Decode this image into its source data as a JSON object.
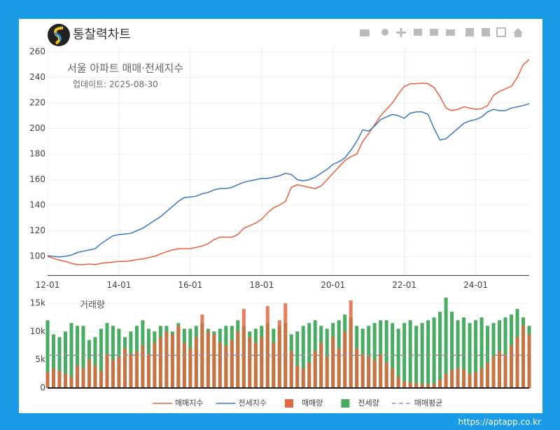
{
  "brand": "통찰력차트",
  "watermark": "https://aptapp.co.kr",
  "chart_data": [
    {
      "type": "line",
      "title": "서울 아파트 매매·전세지수",
      "subtitle": "업데이트: 2025-08-30",
      "categories": [
        "12-01",
        "12-03",
        "12-05",
        "12-07",
        "12-09",
        "12-11",
        "13-01",
        "13-03",
        "13-05",
        "13-07",
        "13-09",
        "13-11",
        "14-01",
        "14-03",
        "14-05",
        "14-07",
        "14-09",
        "14-11",
        "15-01",
        "15-03",
        "15-05",
        "15-07",
        "15-09",
        "15-11",
        "16-01",
        "16-03",
        "16-05",
        "16-07",
        "16-09",
        "16-11",
        "17-01",
        "17-03",
        "17-05",
        "17-07",
        "17-09",
        "17-11",
        "18-01",
        "18-03",
        "18-05",
        "18-07",
        "18-09",
        "18-11",
        "19-01",
        "19-03",
        "19-05",
        "19-07",
        "19-09",
        "19-11",
        "20-01",
        "20-03",
        "20-05",
        "20-07",
        "20-09",
        "20-11",
        "21-01",
        "21-03",
        "21-05",
        "21-07",
        "21-09",
        "21-11",
        "22-01",
        "22-03",
        "22-05",
        "22-07",
        "22-09",
        "22-11",
        "23-01",
        "23-03",
        "23-05",
        "23-07",
        "23-09",
        "23-11",
        "24-01",
        "24-03",
        "24-05",
        "24-07",
        "24-09",
        "24-11",
        "25-01",
        "25-03",
        "25-05",
        "25-07"
      ],
      "series": [
        {
          "name": "매매지수",
          "color": "#e8603c",
          "values": [
            100,
            98.5,
            97,
            96,
            94.5,
            93.5,
            93.5,
            94,
            93.5,
            94.5,
            95,
            95.5,
            96,
            96,
            96.5,
            97.5,
            98,
            99,
            100,
            102,
            103.5,
            105,
            106,
            106,
            106,
            107,
            108,
            110,
            113,
            115,
            115,
            115,
            117,
            122,
            124,
            126,
            129,
            134,
            138,
            140,
            143,
            154,
            156,
            155,
            154,
            153,
            155,
            160,
            165,
            170,
            175,
            178,
            180,
            190,
            196,
            203,
            210,
            215,
            220,
            227,
            233,
            235,
            235,
            235.5,
            235,
            232,
            225,
            216,
            214,
            215,
            217,
            216,
            215,
            215.5,
            218,
            226,
            229,
            231,
            233,
            240,
            250,
            254
          ]
        },
        {
          "name": "전세지수",
          "color": "#3a78c4",
          "values": [
            100.5,
            100,
            99.5,
            100,
            101,
            103,
            104,
            105,
            106,
            110,
            113,
            116,
            117,
            117.5,
            118,
            120,
            122,
            125,
            128,
            131,
            135,
            139,
            143,
            146,
            146.5,
            147,
            149,
            150,
            152,
            153,
            153,
            154,
            156,
            158,
            159,
            160,
            161,
            161,
            162,
            163,
            165,
            164,
            160,
            159,
            160,
            162,
            165,
            168,
            172,
            174,
            177,
            183,
            190,
            199,
            198,
            202,
            207,
            209,
            211,
            210,
            208,
            212,
            213,
            213,
            211,
            200,
            191,
            192,
            196,
            200,
            204,
            206,
            207,
            209,
            213,
            215,
            214,
            214,
            216,
            217,
            218,
            219.5
          ]
        }
      ],
      "ylim": [
        85,
        260
      ],
      "yticks": [
        100,
        120,
        140,
        160,
        180,
        200,
        220,
        240,
        260
      ],
      "xticks": [
        "12-01",
        "14-01",
        "16-01",
        "18-01",
        "20-01",
        "22-01",
        "24-01"
      ],
      "grid": true
    },
    {
      "type": "bar",
      "title": "거래량",
      "series": [
        {
          "name": "매매량",
          "color": "#e2683d",
          "values": [
            2800,
            3500,
            3000,
            2500,
            2000,
            4000,
            3500,
            5000,
            4000,
            3000,
            6000,
            5000,
            5500,
            7000,
            6000,
            6500,
            7500,
            6000,
            8000,
            9000,
            10000,
            9500,
            11000,
            8000,
            7000,
            9000,
            13000,
            10000,
            9500,
            8000,
            7500,
            8500,
            10000,
            14000,
            9000,
            8000,
            9000,
            14500,
            8000,
            12000,
            15000,
            6500,
            4000,
            3500,
            4500,
            6500,
            8000,
            5500,
            9000,
            7000,
            10000,
            15500,
            7000,
            6000,
            5500,
            5000,
            6000,
            4500,
            3500,
            2000,
            1200,
            1000,
            900,
            700,
            600,
            800,
            1500,
            2500,
            3200,
            3500,
            3300,
            2500,
            2800,
            3500,
            4500,
            5500,
            6500,
            6000,
            7500,
            9000,
            11000,
            9500
          ]
        },
        {
          "name": "전세량",
          "color": "#48ad62",
          "values": [
            12000,
            9500,
            9000,
            10000,
            11500,
            11000,
            11000,
            8500,
            9000,
            10500,
            11500,
            11000,
            10500,
            9000,
            10000,
            11000,
            12000,
            10500,
            10000,
            11000,
            11000,
            10000,
            11500,
            10500,
            10500,
            11000,
            11500,
            10500,
            10000,
            10500,
            11000,
            11000,
            12000,
            11000,
            10000,
            10500,
            11000,
            11500,
            10500,
            11000,
            11500,
            9500,
            10000,
            11000,
            11500,
            12000,
            11000,
            10500,
            11500,
            12000,
            13000,
            12500,
            11000,
            10500,
            11000,
            11500,
            12000,
            12000,
            11500,
            10500,
            11500,
            12000,
            11000,
            11500,
            12000,
            12500,
            13500,
            16000,
            13500,
            12000,
            12500,
            11500,
            12000,
            12500,
            11000,
            11500,
            12000,
            12500,
            13000,
            14000,
            12500,
            11000
          ]
        }
      ],
      "lines": [
        {
          "name": "매매평균",
          "value": 5800,
          "color": "#9a8fa0",
          "dash": true
        }
      ],
      "ylim": [
        0,
        16000
      ],
      "yticks": [
        0,
        {
          "value": 5000,
          "label": "5k"
        },
        {
          "value": 10000,
          "label": "10k"
        },
        {
          "value": 15000,
          "label": "15k"
        }
      ],
      "grid": true
    }
  ]
}
